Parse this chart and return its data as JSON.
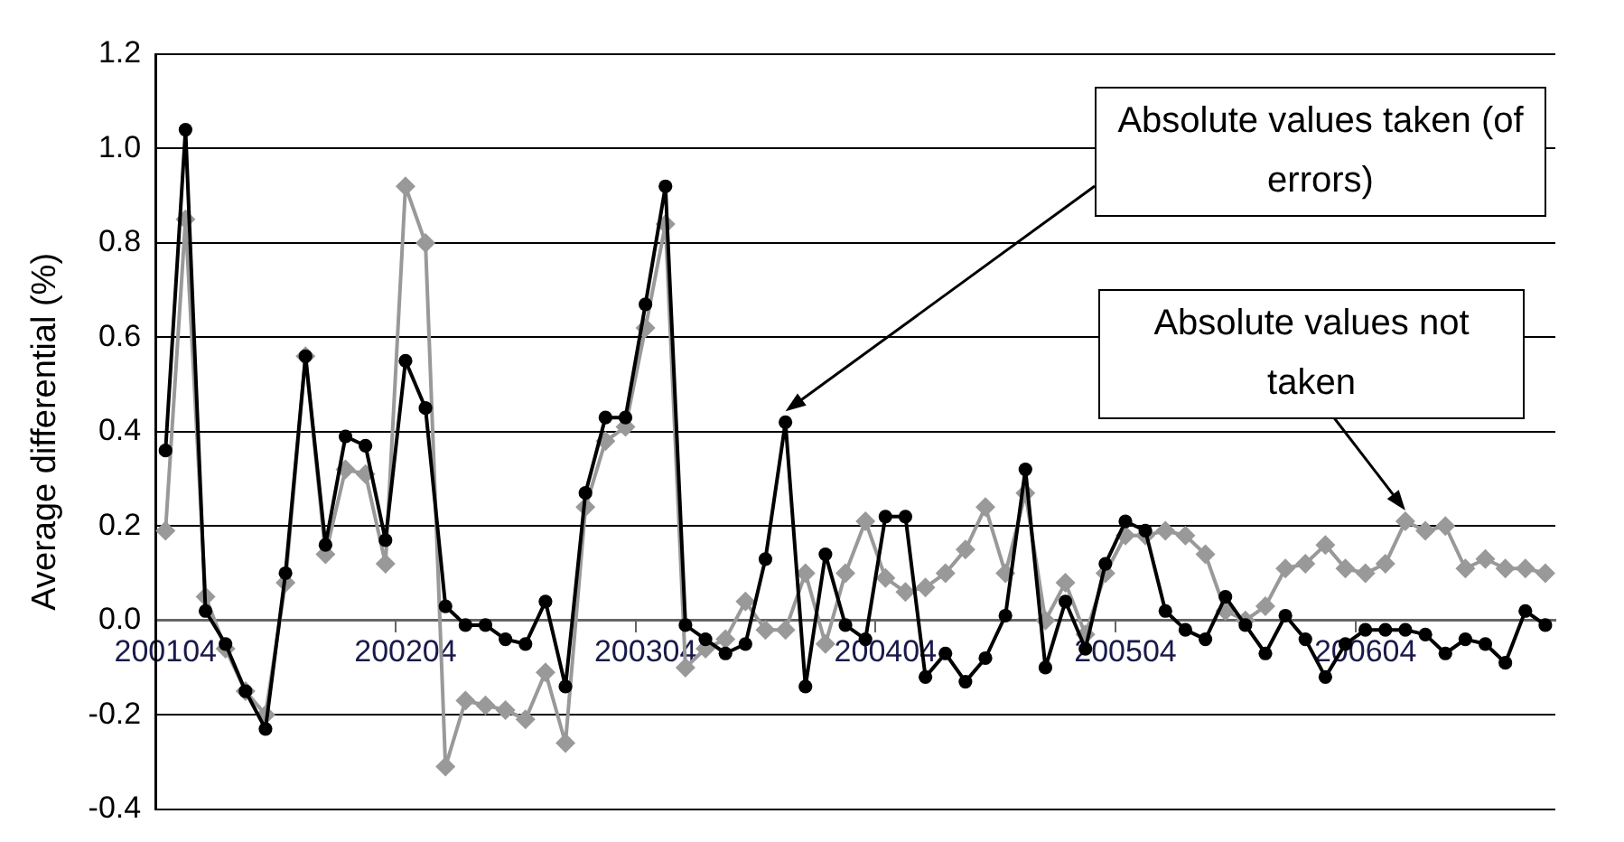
{
  "chart_data": {
    "type": "line",
    "ylabel": "Average differential (%)",
    "categories": [
      "200104",
      null,
      null,
      null,
      null,
      null,
      null,
      null,
      null,
      null,
      null,
      null,
      "200204",
      null,
      null,
      null,
      null,
      null,
      null,
      null,
      null,
      null,
      null,
      null,
      "200304",
      null,
      null,
      null,
      null,
      null,
      null,
      null,
      null,
      null,
      null,
      null,
      "200404",
      null,
      null,
      null,
      null,
      null,
      null,
      null,
      null,
      null,
      null,
      null,
      "200504",
      null,
      null,
      null,
      null,
      null,
      null,
      null,
      null,
      null,
      null,
      null,
      "200604",
      null,
      null,
      null,
      null,
      null,
      null,
      null,
      null,
      null
    ],
    "series": [
      {
        "color": "#000000",
        "marker": "circle",
        "values": [
          0.36,
          1.04,
          0.02,
          -0.05,
          -0.15,
          -0.23,
          0.1,
          0.56,
          0.16,
          0.39,
          0.37,
          0.17,
          0.55,
          0.45,
          0.03,
          -0.01,
          -0.01,
          -0.04,
          -0.05,
          0.04,
          -0.14,
          0.27,
          0.43,
          0.43,
          0.67,
          0.92,
          -0.01,
          -0.04,
          -0.07,
          -0.05,
          0.13,
          0.42,
          -0.14,
          0.14,
          -0.01,
          -0.04,
          0.22,
          0.22,
          -0.12,
          -0.07,
          -0.13,
          -0.08,
          0.01,
          0.32,
          -0.1,
          0.04,
          -0.06,
          0.12,
          0.21,
          0.19,
          0.02,
          -0.02,
          -0.04,
          0.05,
          -0.01,
          -0.07,
          0.01,
          -0.04,
          -0.12,
          -0.05,
          -0.02,
          -0.02,
          -0.02,
          -0.03,
          -0.07,
          -0.04,
          -0.05,
          -0.09,
          0.02,
          -0.01
        ]
      },
      {
        "color": "#999999",
        "marker": "diamond",
        "values": [
          0.19,
          0.85,
          0.05,
          -0.06,
          -0.15,
          -0.2,
          0.08,
          0.56,
          0.14,
          0.32,
          0.31,
          0.12,
          0.92,
          0.8,
          -0.31,
          -0.17,
          -0.18,
          -0.19,
          -0.21,
          -0.11,
          -0.26,
          0.24,
          0.38,
          0.41,
          0.62,
          0.84,
          -0.1,
          -0.06,
          -0.04,
          0.04,
          -0.02,
          -0.02,
          0.1,
          -0.05,
          0.1,
          0.21,
          0.09,
          0.06,
          0.07,
          0.1,
          0.15,
          0.24,
          0.1,
          0.27,
          0.0,
          0.08,
          -0.03,
          0.1,
          0.18,
          0.18,
          0.19,
          0.18,
          0.14,
          0.02,
          0.0,
          0.03,
          0.11,
          0.12,
          0.16,
          0.11,
          0.1,
          0.12,
          0.21,
          0.19,
          0.2,
          0.11,
          0.13,
          0.11,
          0.11,
          0.1
        ]
      }
    ],
    "ylim": [
      -0.4,
      1.2
    ],
    "yticks": [
      {
        "value": -0.4,
        "label": "-0.4"
      },
      {
        "value": -0.2,
        "label": "-0.2"
      },
      {
        "value": 0,
        "label": "0.0"
      },
      {
        "value": 0.2,
        "label": "0.2"
      },
      {
        "value": 0.4,
        "label": "0.4"
      },
      {
        "value": 0.6,
        "label": "0.6"
      },
      {
        "value": 0.8,
        "label": "0.8"
      },
      {
        "value": 1.0,
        "label": "1.0"
      },
      {
        "value": 1.2,
        "label": "1.2"
      }
    ],
    "grid": "y",
    "annotations": [
      "Absolute values taken (of errors)",
      "Absolute values not taken"
    ]
  }
}
